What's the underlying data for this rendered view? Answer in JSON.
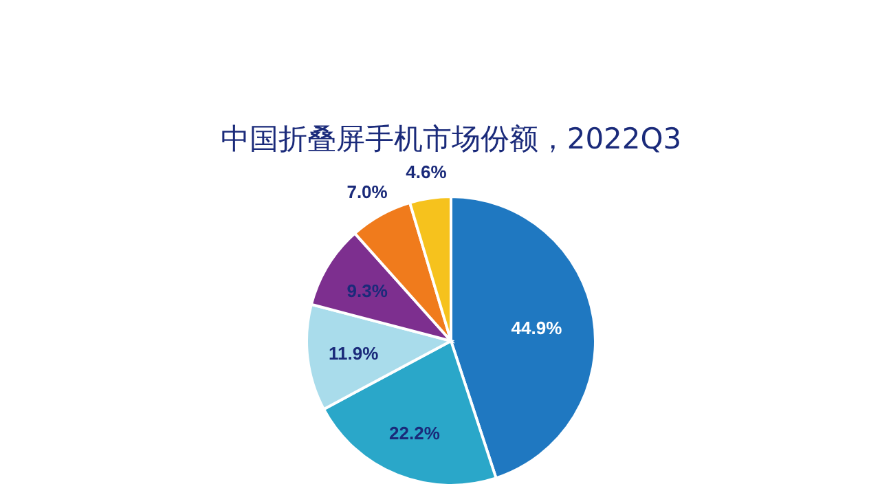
{
  "chart_data": {
    "type": "pie",
    "title": "中国折叠屏手机市场份额，2022Q3",
    "categories": [
      null,
      null,
      null,
      null,
      null,
      null
    ],
    "values": [
      44.9,
      22.2,
      11.9,
      9.3,
      7.0,
      4.6
    ],
    "value_labels": [
      "44.9%",
      "22.2%",
      "11.9%",
      "9.3%",
      "7.0%",
      "4.6%"
    ],
    "colors": [
      "#1f78c1",
      "#2aa7c9",
      "#a9dceb",
      "#7d2f8f",
      "#f07b1c",
      "#f6c21d"
    ]
  }
}
